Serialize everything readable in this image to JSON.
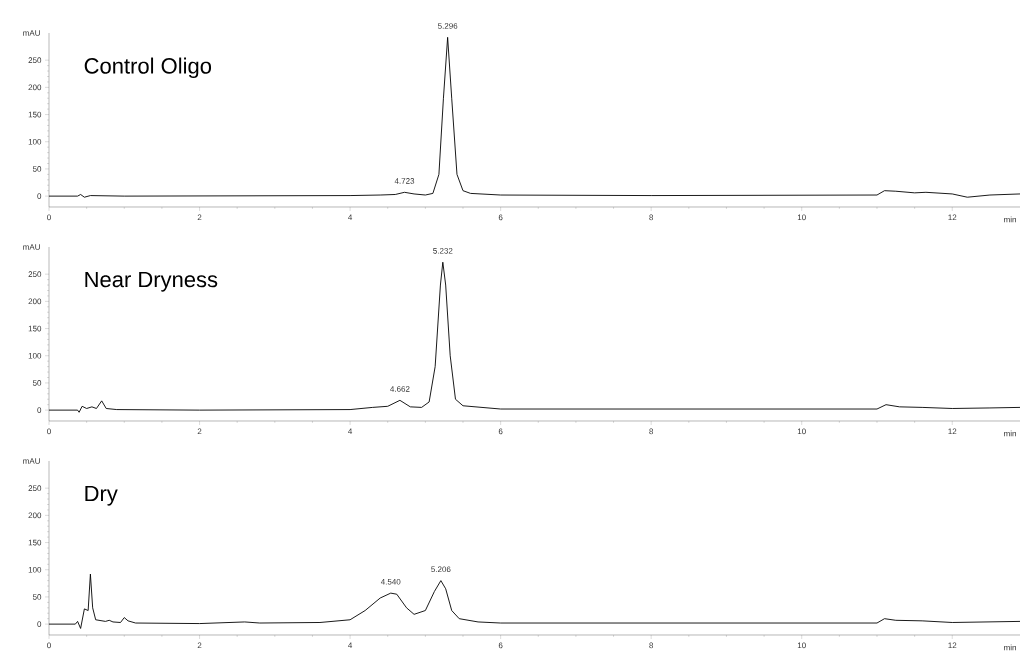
{
  "chart_data": [
    {
      "type": "line",
      "title": "Control Oligo",
      "xlabel": "min",
      "ylabel": "mAU",
      "color": "#000000",
      "xlim": [
        0,
        12.9
      ],
      "xticks": [
        0,
        2,
        4,
        6,
        8,
        10,
        12
      ],
      "ylim": [
        -20,
        300
      ],
      "yticks": [
        0,
        50,
        100,
        150,
        200,
        250
      ],
      "x": [
        0,
        0.38,
        0.42,
        0.47,
        0.55,
        1,
        4,
        4.4,
        4.6,
        4.723,
        4.85,
        5.0,
        5.1,
        5.18,
        5.24,
        5.296,
        5.35,
        5.42,
        5.5,
        5.6,
        6,
        8,
        11.0,
        11.1,
        11.25,
        11.5,
        11.65,
        12.0,
        12.2,
        12.5,
        12.9
      ],
      "values": [
        0,
        0,
        3,
        -2,
        1,
        0,
        1,
        2,
        3,
        7,
        4,
        2,
        5,
        40,
        180,
        292,
        180,
        40,
        10,
        5,
        2,
        1,
        2,
        10,
        9,
        6,
        7,
        4,
        -2,
        2,
        4
      ],
      "annotations": [
        {
          "text": "4.723",
          "x": 4.723,
          "y": 7
        },
        {
          "text": "5.296",
          "x": 5.296,
          "y": 292
        }
      ]
    },
    {
      "type": "line",
      "title": "Near Dryness",
      "xlabel": "min",
      "ylabel": "mAU",
      "color": "#000000",
      "xlim": [
        0,
        12.9
      ],
      "xticks": [
        0,
        2,
        4,
        6,
        8,
        10,
        12
      ],
      "ylim": [
        -20,
        300
      ],
      "yticks": [
        0,
        50,
        100,
        150,
        200,
        250
      ],
      "x": [
        0,
        0.38,
        0.4,
        0.44,
        0.5,
        0.57,
        0.63,
        0.7,
        0.76,
        0.9,
        2,
        4,
        4.3,
        4.5,
        4.662,
        4.8,
        4.95,
        5.05,
        5.13,
        5.2,
        5.232,
        5.27,
        5.33,
        5.4,
        5.5,
        6,
        11.0,
        11.12,
        11.3,
        11.6,
        12,
        12.5,
        12.9
      ],
      "values": [
        0,
        0,
        -4,
        7,
        3,
        6,
        3,
        17,
        3,
        1,
        0,
        1,
        5,
        7,
        18,
        6,
        5,
        15,
        80,
        230,
        272,
        230,
        100,
        20,
        8,
        2,
        2,
        10,
        6,
        5,
        3,
        4,
        5
      ],
      "annotations": [
        {
          "text": "4.662",
          "x": 4.662,
          "y": 18
        },
        {
          "text": "5.232",
          "x": 5.232,
          "y": 272
        }
      ]
    },
    {
      "type": "line",
      "title": "Dry",
      "xlabel": "min",
      "ylabel": "mAU",
      "color": "#000000",
      "xlim": [
        0,
        12.9
      ],
      "xticks": [
        0,
        2,
        4,
        6,
        8,
        10,
        12
      ],
      "ylim": [
        -20,
        300
      ],
      "yticks": [
        0,
        50,
        100,
        150,
        200,
        250
      ],
      "x": [
        0,
        0.35,
        0.38,
        0.42,
        0.47,
        0.52,
        0.55,
        0.58,
        0.62,
        0.75,
        0.8,
        0.85,
        0.95,
        1.0,
        1.05,
        1.15,
        2,
        2.6,
        2.8,
        3.6,
        4.0,
        4.2,
        4.4,
        4.54,
        4.62,
        4.75,
        4.85,
        5.0,
        5.12,
        5.206,
        5.27,
        5.35,
        5.45,
        5.7,
        6,
        11,
        11.1,
        11.25,
        11.6,
        12,
        12.9
      ],
      "values": [
        0,
        0,
        5,
        -8,
        28,
        25,
        92,
        30,
        8,
        5,
        7,
        4,
        3,
        12,
        6,
        2,
        1,
        4,
        2,
        3,
        8,
        25,
        48,
        57,
        55,
        30,
        18,
        25,
        60,
        80,
        65,
        25,
        10,
        4,
        2,
        2,
        10,
        7,
        6,
        3,
        5
      ],
      "annotations": [
        {
          "text": "4.540",
          "x": 4.54,
          "y": 57
        },
        {
          "text": "5.206",
          "x": 5.206,
          "y": 80
        }
      ]
    }
  ]
}
